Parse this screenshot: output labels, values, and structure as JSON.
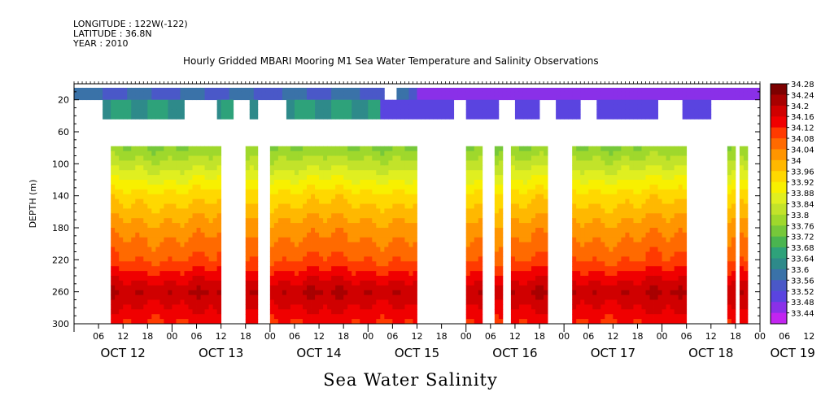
{
  "header": {
    "longitude": "LONGITUDE : 122W(-122)",
    "latitude": "LATITUDE : 36.8N",
    "year": "YEAR : 2010",
    "title": "Hourly Gridded MBARI Mooring M1 Sea Water Temperature and Salinity Observations"
  },
  "footer": {
    "variable_title": "Sea Water Salinity"
  },
  "chart_data": {
    "type": "heatmap",
    "title": "Hourly Gridded MBARI Mooring M1 Sea Water Temperature and Salinity Observations",
    "xlabel": "",
    "ylabel": "DEPTH (m)",
    "colorbar_label": "Sea Water Salinity",
    "x_range_hours": [
      0,
      168
    ],
    "x_start": "OCT 12 00:00",
    "ylim": [
      300,
      0
    ],
    "y_ticks": [
      20,
      60,
      100,
      140,
      180,
      220,
      260,
      300
    ],
    "x_hour_ticks": [
      "06",
      "12",
      "18",
      "00",
      "06",
      "12",
      "18",
      "00",
      "06",
      "12",
      "18",
      "00",
      "06",
      "12",
      "18",
      "00",
      "06",
      "12",
      "18",
      "00",
      "06",
      "12",
      "18",
      "00",
      "06",
      "12",
      "18",
      "00",
      "06",
      "12",
      "18"
    ],
    "x_day_labels": [
      "OCT 12",
      "OCT 13",
      "OCT 14",
      "OCT 15",
      "OCT 16",
      "OCT 17",
      "OCT 18",
      "OCT 19"
    ],
    "colorbar": {
      "levels": [
        "34.28",
        "34.24",
        "34.2",
        "34.16",
        "34.12",
        "34.08",
        "34.04",
        "34",
        "33.96",
        "33.92",
        "33.88",
        "33.84",
        "33.8",
        "33.76",
        "33.72",
        "33.68",
        "33.64",
        "33.6",
        "33.56",
        "33.52",
        "33.48",
        "33.44"
      ],
      "colors": [
        "#7d0000",
        "#a80000",
        "#d00000",
        "#f00000",
        "#ff3a00",
        "#ff6a00",
        "#ff9500",
        "#ffb800",
        "#ffd800",
        "#f8f000",
        "#e0ef20",
        "#c2e32a",
        "#9fd82c",
        "#76c83a",
        "#4ab550",
        "#2ea27a",
        "#2e8a8a",
        "#3a72a8",
        "#4a58c8",
        "#5a44e0",
        "#8a30e8",
        "#c224f0"
      ]
    },
    "depth_profile": [
      {
        "depth": 20,
        "salinity": 33.58
      },
      {
        "depth": 30,
        "salinity": 33.68
      },
      {
        "depth": 80,
        "salinity": 33.8
      },
      {
        "depth": 100,
        "salinity": 33.86
      },
      {
        "depth": 140,
        "salinity": 33.98
      },
      {
        "depth": 180,
        "salinity": 34.06
      },
      {
        "depth": 220,
        "salinity": 34.12
      },
      {
        "depth": 260,
        "salinity": 34.24
      },
      {
        "depth": 300,
        "salinity": 34.16
      }
    ],
    "surface_series_mean": [
      {
        "from_hour": 0,
        "to_hour": 84,
        "salinity_20m": 33.6
      },
      {
        "from_hour": 84,
        "to_hour": 168,
        "salinity_20m": 33.5
      }
    ],
    "data_gaps_hours_deep": [
      [
        0,
        9
      ],
      [
        36,
        42
      ],
      [
        45,
        48
      ],
      [
        84,
        96
      ],
      [
        100,
        103
      ],
      [
        105,
        107
      ],
      [
        116,
        122
      ],
      [
        150,
        160
      ],
      [
        162,
        163
      ],
      [
        165,
        168
      ]
    ]
  }
}
